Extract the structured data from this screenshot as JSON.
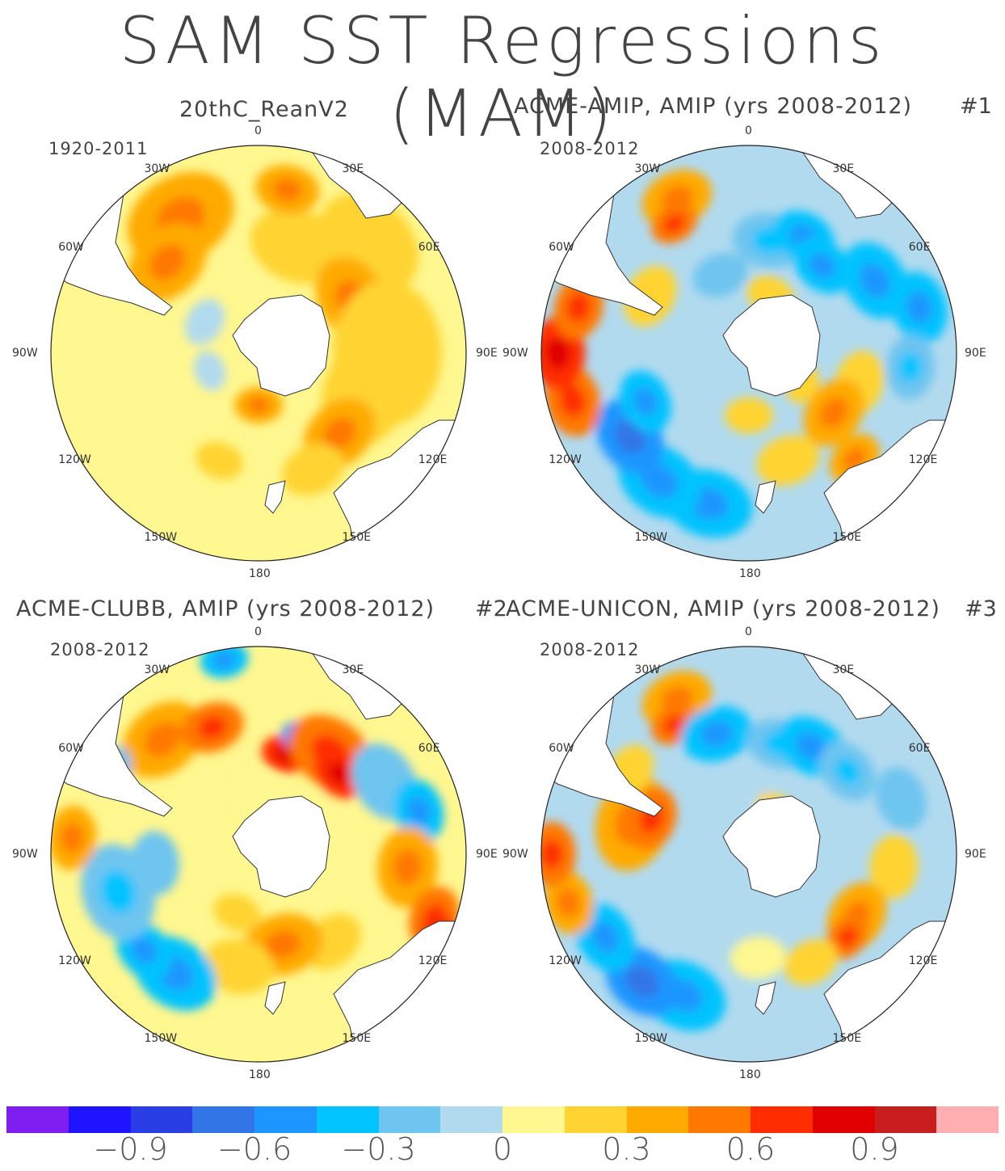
{
  "title": "SAM SST Regressions (MAM)",
  "colors": {
    "land": "#ffffff",
    "scale": [
      "#7e1ef0",
      "#1e14ff",
      "#2a3ee6",
      "#3275e6",
      "#1e96ff",
      "#00c3ff",
      "#6ec5ef",
      "#b1daef",
      "#fff78f",
      "#ffd432",
      "#ffaa00",
      "#ff7800",
      "#ff2d00",
      "#e10000",
      "#c81e1e",
      "#ffafaf"
    ]
  },
  "panels": [
    {
      "title": "20thC_ReanV2",
      "number": "",
      "period": "1920-2011",
      "pattern": "rean"
    },
    {
      "title": "ACME-AMIP, AMIP (yrs 2008-2012)",
      "number": "#1",
      "period": "2008-2012",
      "pattern": "amip"
    },
    {
      "title": "ACME-CLUBB, AMIP (yrs 2008-2012)",
      "number": "#2",
      "period": "2008-2012",
      "pattern": "clubb"
    },
    {
      "title": "ACME-UNICON, AMIP (yrs 2008-2012)",
      "number": "#3",
      "period": "2008-2012",
      "pattern": "unicon"
    }
  ],
  "lon_labels": [
    "0",
    "30E",
    "60E",
    "90E",
    "120E",
    "150E",
    "180",
    "150W",
    "120W",
    "90W",
    "60W",
    "30W"
  ],
  "colorbar": {
    "ticks": [
      "−0.9",
      "−0.6",
      "−0.3",
      "0",
      "0.3",
      "0.6",
      "0.9"
    ],
    "tick_values": [
      -0.9,
      -0.6,
      -0.3,
      0,
      0.3,
      0.6,
      0.9
    ]
  }
}
